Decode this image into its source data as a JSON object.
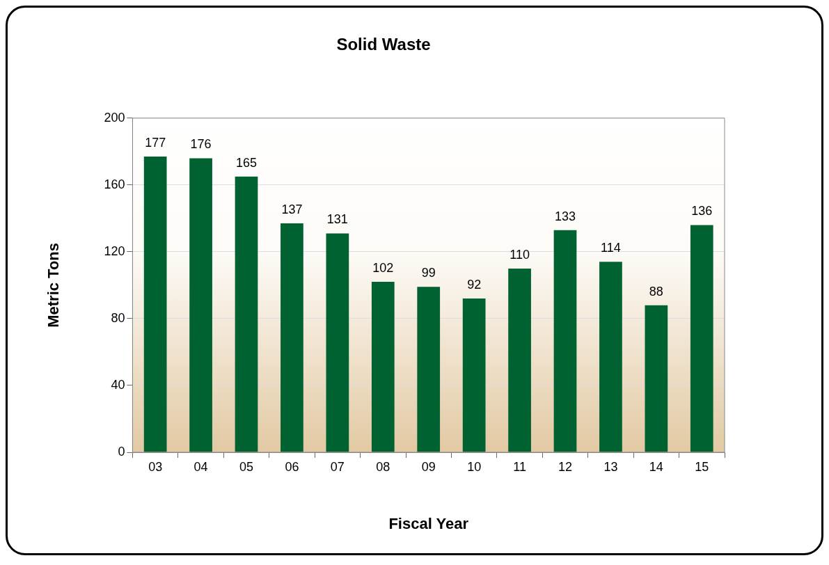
{
  "chart_data": {
    "type": "bar",
    "title": "Solid Waste",
    "xlabel": "Fiscal Year",
    "ylabel": "Metric Tons",
    "categories": [
      "03",
      "04",
      "05",
      "06",
      "07",
      "08",
      "09",
      "10",
      "11",
      "12",
      "13",
      "14",
      "15"
    ],
    "values": [
      177,
      176,
      165,
      137,
      131,
      102,
      99,
      92,
      110,
      133,
      114,
      88,
      136
    ],
    "color": "#006131",
    "ylim": [
      0,
      200
    ],
    "yticks": [
      0,
      40,
      80,
      120,
      160,
      200
    ],
    "grid": "y",
    "data_labels": true,
    "legend": false
  }
}
